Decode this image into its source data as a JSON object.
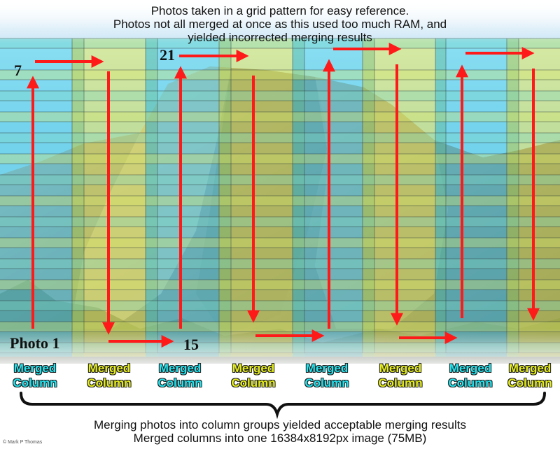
{
  "title_lines": [
    "Photos taken in a grid pattern for easy reference.",
    "Photos not all merged at once as this used too much RAM, and",
    "yielded incorrected merging results"
  ],
  "photo_labels": {
    "start": "Photo 1",
    "top_left": "7",
    "bottom_second": "15",
    "top_third": "21"
  },
  "columns": [
    {
      "label_line1": "Merged",
      "label_line2": "Column",
      "color": "#22e5f0"
    },
    {
      "label_line1": "Merged",
      "label_line2": "Column",
      "color": "#e6ee1a"
    },
    {
      "label_line1": "Merged",
      "label_line2": "Column",
      "color": "#22e5f0"
    },
    {
      "label_line1": "Merged",
      "label_line2": "Column",
      "color": "#e6ee1a"
    },
    {
      "label_line1": "Merged",
      "label_line2": "Column",
      "color": "#22e5f0"
    },
    {
      "label_line1": "Merged",
      "label_line2": "Column",
      "color": "#e6ee1a"
    },
    {
      "label_line1": "Merged",
      "label_line2": "Column",
      "color": "#22e5f0"
    },
    {
      "label_line1": "Merged",
      "label_line2": "Column",
      "color": "#e6ee1a"
    }
  ],
  "footer_lines": [
    "Merging photos into column groups yielded acceptable merging results",
    "Merged columns into one 16384x8192px image (75MB)"
  ],
  "credit": "© Mark P Thomas",
  "colors": {
    "arrow": "#ff1a1a",
    "cyan_overlay": "#2fd4ee",
    "yellow_overlay": "#e8ee30",
    "sky": "#a9d6ee",
    "rock": "#8a8e8c"
  }
}
